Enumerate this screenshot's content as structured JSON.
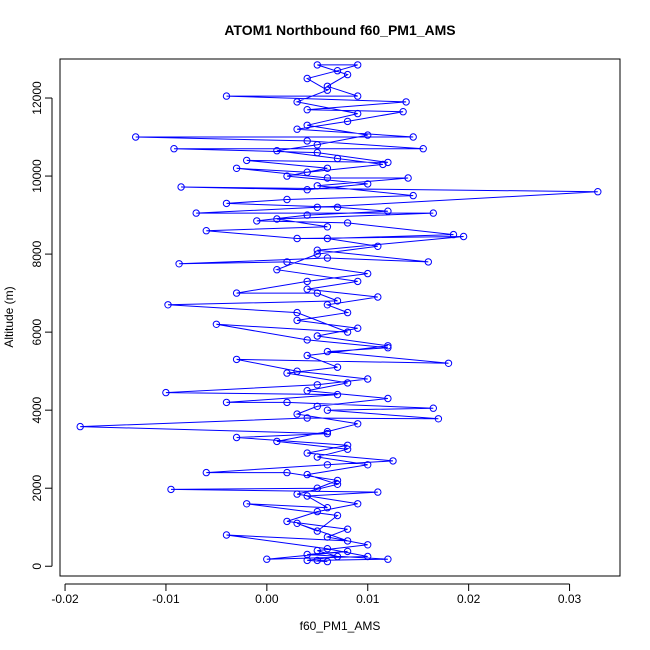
{
  "chart_data": {
    "type": "line",
    "title": "ATOM1 Northbound f60_PM1_AMS",
    "xlabel": "f60_PM1_AMS",
    "ylabel": "Altitude (m)",
    "xlim": [
      -0.0205,
      0.035
    ],
    "ylim": [
      -250,
      13000
    ],
    "xticks": [
      -0.02,
      -0.01,
      0.0,
      0.01,
      0.02,
      0.03
    ],
    "xtick_labels": [
      "-0.02",
      "-0.01",
      "0.00",
      "0.01",
      "0.02",
      "0.03"
    ],
    "yticks": [
      0,
      2000,
      4000,
      6000,
      8000,
      10000,
      12000
    ],
    "ytick_labels": [
      "0",
      "2000",
      "4000",
      "6000",
      "8000",
      "10000",
      "12000"
    ],
    "grid": false,
    "series": [
      {
        "name": "f60_PM1_AMS",
        "color": "#0000ff",
        "marker": "open-circle",
        "points": [
          [
            0.005,
            150
          ],
          [
            0.012,
            180
          ],
          [
            0.004,
            300
          ],
          [
            0.008,
            380
          ],
          [
            0.0,
            180
          ],
          [
            0.01,
            250
          ],
          [
            0.006,
            450
          ],
          [
            -0.004,
            800
          ],
          [
            0.008,
            650
          ],
          [
            0.003,
            1100
          ],
          [
            0.005,
            900
          ],
          [
            0.007,
            1300
          ],
          [
            -0.002,
            1600
          ],
          [
            0.006,
            1500
          ],
          [
            0.004,
            1800
          ],
          [
            0.011,
            1900
          ],
          [
            -0.0095,
            1970
          ],
          [
            0.005,
            2000
          ],
          [
            0.007,
            2200
          ],
          [
            0.002,
            2400
          ],
          [
            -0.006,
            2400
          ],
          [
            0.006,
            2600
          ],
          [
            0.0125,
            2700
          ],
          [
            0.004,
            2900
          ],
          [
            0.008,
            3100
          ],
          [
            -0.003,
            3300
          ],
          [
            0.006,
            3400
          ],
          [
            -0.0185,
            3580
          ],
          [
            0.004,
            3800
          ],
          [
            0.017,
            3780
          ],
          [
            0.006,
            4000
          ],
          [
            0.0165,
            4050
          ],
          [
            0.002,
            4200
          ],
          [
            -0.004,
            4200
          ],
          [
            0.007,
            4400
          ],
          [
            -0.01,
            4450
          ],
          [
            0.005,
            4650
          ],
          [
            0.01,
            4800
          ],
          [
            0.003,
            5000
          ],
          [
            -0.003,
            5300
          ],
          [
            0.018,
            5200
          ],
          [
            0.006,
            5500
          ],
          [
            0.012,
            5600
          ],
          [
            0.004,
            5800
          ],
          [
            -0.005,
            6200
          ],
          [
            0.008,
            6000
          ],
          [
            0.003,
            6500
          ],
          [
            -0.0098,
            6700
          ],
          [
            0.007,
            6800
          ],
          [
            0.005,
            7000
          ],
          [
            -0.003,
            7000
          ],
          [
            0.004,
            7300
          ],
          [
            0.01,
            7500
          ],
          [
            0.002,
            7800
          ],
          [
            -0.0087,
            7750
          ],
          [
            0.006,
            7900
          ],
          [
            0.016,
            7800
          ],
          [
            0.005,
            8100
          ],
          [
            0.0195,
            8450
          ],
          [
            0.003,
            8400
          ],
          [
            -0.006,
            8600
          ],
          [
            0.006,
            8700
          ],
          [
            0.001,
            8900
          ],
          [
            0.0165,
            9050
          ],
          [
            -0.007,
            9050
          ],
          [
            0.005,
            9200
          ],
          [
            0.0328,
            9600
          ],
          [
            -0.0085,
            9720
          ],
          [
            0.004,
            9650
          ],
          [
            0.01,
            9800
          ],
          [
            0.002,
            10000
          ],
          [
            0.006,
            10200
          ],
          [
            -0.002,
            10400
          ],
          [
            0.012,
            10350
          ],
          [
            0.005,
            10600
          ],
          [
            -0.0092,
            10700
          ],
          [
            0.0155,
            10700
          ],
          [
            0.004,
            10900
          ],
          [
            -0.013,
            11000
          ],
          [
            0.0145,
            11000
          ],
          [
            0.003,
            11200
          ],
          [
            0.008,
            11400
          ],
          [
            0.0135,
            11650
          ],
          [
            0.004,
            11700
          ],
          [
            0.0138,
            11900
          ],
          [
            -0.004,
            12050
          ],
          [
            0.009,
            12050
          ],
          [
            0.006,
            12300
          ],
          [
            0.008,
            12600
          ],
          [
            0.005,
            12850
          ],
          [
            0.009,
            12850
          ],
          [
            0.007,
            12700
          ],
          [
            0.004,
            12500
          ],
          [
            0.006,
            12200
          ],
          [
            0.003,
            11900
          ],
          [
            0.009,
            11600
          ],
          [
            0.004,
            11300
          ],
          [
            0.01,
            11050
          ],
          [
            0.005,
            10800
          ],
          [
            0.001,
            10650
          ],
          [
            0.007,
            10450
          ],
          [
            0.0115,
            10300
          ],
          [
            0.004,
            10100
          ],
          [
            -0.003,
            10200
          ],
          [
            0.006,
            9950
          ],
          [
            0.014,
            9950
          ],
          [
            0.005,
            9750
          ],
          [
            0.0145,
            9500
          ],
          [
            0.002,
            9400
          ],
          [
            -0.004,
            9300
          ],
          [
            0.007,
            9200
          ],
          [
            0.012,
            9100
          ],
          [
            0.004,
            9000
          ],
          [
            -0.001,
            8850
          ],
          [
            0.008,
            8800
          ],
          [
            0.0185,
            8500
          ],
          [
            0.006,
            8400
          ],
          [
            0.011,
            8200
          ],
          [
            0.005,
            8000
          ],
          [
            0.001,
            7600
          ],
          [
            0.009,
            7300
          ],
          [
            0.004,
            7100
          ],
          [
            0.011,
            6900
          ],
          [
            0.006,
            6700
          ],
          [
            0.008,
            6500
          ],
          [
            0.003,
            6300
          ],
          [
            0.009,
            6100
          ],
          [
            0.005,
            5900
          ],
          [
            0.012,
            5650
          ],
          [
            0.004,
            5400
          ],
          [
            0.007,
            5100
          ],
          [
            0.002,
            4950
          ],
          [
            0.008,
            4700
          ],
          [
            0.004,
            4500
          ],
          [
            0.012,
            4300
          ],
          [
            0.005,
            4100
          ],
          [
            0.003,
            3900
          ],
          [
            0.009,
            3650
          ],
          [
            0.006,
            3450
          ],
          [
            0.001,
            3200
          ],
          [
            0.008,
            3000
          ],
          [
            0.005,
            2800
          ],
          [
            0.01,
            2600
          ],
          [
            0.004,
            2350
          ],
          [
            0.007,
            2100
          ],
          [
            0.003,
            1850
          ],
          [
            0.009,
            1600
          ],
          [
            0.005,
            1400
          ],
          [
            0.002,
            1150
          ],
          [
            0.008,
            950
          ],
          [
            0.006,
            750
          ],
          [
            0.01,
            550
          ],
          [
            0.005,
            400
          ],
          [
            0.007,
            250
          ],
          [
            0.004,
            150
          ],
          [
            0.006,
            120
          ]
        ]
      }
    ]
  }
}
